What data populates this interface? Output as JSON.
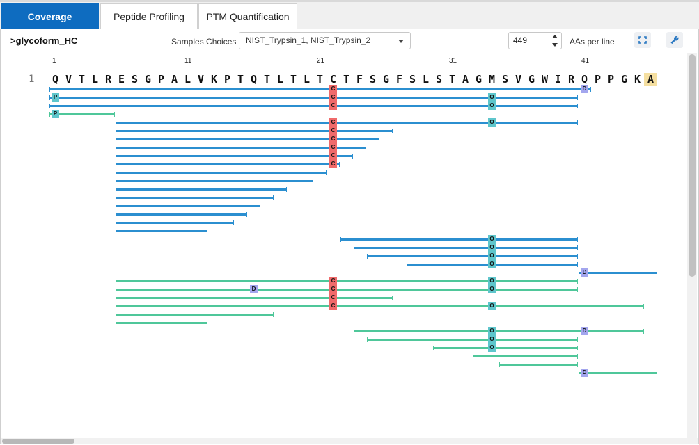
{
  "tabs": [
    {
      "label": "Coverage",
      "active": true
    },
    {
      "label": "Peptide Profiling",
      "active": false
    },
    {
      "label": "PTM Quantification",
      "active": false
    }
  ],
  "header": {
    "sequence_name": ">glycoform_HC",
    "samples_label": "Samples Choices",
    "samples_value": "NIST_Trypsin_1, NIST_Trypsin_2",
    "aa_per_line_value": "449",
    "aa_per_line_label": "AAs per line",
    "expand_icon": "expand-icon",
    "settings_icon": "wrench-icon"
  },
  "sequence": {
    "line_number": "1",
    "residues": [
      "Q",
      "V",
      "T",
      "L",
      "R",
      "E",
      "S",
      "G",
      "P",
      "A",
      "L",
      "V",
      "K",
      "P",
      "T",
      "Q",
      "T",
      "L",
      "T",
      "L",
      "T",
      "C",
      "T",
      "F",
      "S",
      "G",
      "F",
      "S",
      "L",
      "S",
      "T",
      "A",
      "G",
      "M",
      "S",
      "V",
      "G",
      "W",
      "I",
      "R",
      "Q",
      "P",
      "P",
      "G",
      "K",
      "A"
    ],
    "ruler": [
      {
        "position": 1,
        "label": "1"
      },
      {
        "position": 11,
        "label": "11"
      },
      {
        "position": 21,
        "label": "21"
      },
      {
        "position": 31,
        "label": "31"
      },
      {
        "position": 41,
        "label": "41"
      }
    ]
  },
  "colors": {
    "sample_1": "#2b8fd0",
    "sample_2": "#4fc79a",
    "mod_C": "#f06a6a",
    "mod_O": "#5ec6cc",
    "mod_D": "#a3a6ee",
    "mod_P": "#5ec6cc",
    "mod_E": "#f5dfa0"
  },
  "peptides": [
    {
      "sample": 1,
      "start": 1,
      "end": 41,
      "mods": [
        {
          "pos": 22,
          "code": "C"
        },
        {
          "pos": 41,
          "code": "D"
        }
      ]
    },
    {
      "sample": 1,
      "start": 1,
      "end": 40,
      "mods": [
        {
          "pos": 1,
          "code": "P"
        },
        {
          "pos": 22,
          "code": "C"
        },
        {
          "pos": 34,
          "code": "O"
        }
      ]
    },
    {
      "sample": 1,
      "start": 1,
      "end": 40,
      "mods": [
        {
          "pos": 22,
          "code": "C"
        },
        {
          "pos": 34,
          "code": "O"
        }
      ]
    },
    {
      "sample": 2,
      "start": 1,
      "end": 5,
      "mods": [
        {
          "pos": 1,
          "code": "P"
        }
      ]
    },
    {
      "sample": 1,
      "start": 6,
      "end": 40,
      "mods": [
        {
          "pos": 22,
          "code": "C"
        },
        {
          "pos": 34,
          "code": "O"
        }
      ]
    },
    {
      "sample": 1,
      "start": 6,
      "end": 26,
      "mods": [
        {
          "pos": 22,
          "code": "C"
        }
      ]
    },
    {
      "sample": 1,
      "start": 6,
      "end": 25,
      "mods": [
        {
          "pos": 22,
          "code": "C"
        }
      ]
    },
    {
      "sample": 1,
      "start": 6,
      "end": 24,
      "mods": [
        {
          "pos": 22,
          "code": "C"
        }
      ]
    },
    {
      "sample": 1,
      "start": 6,
      "end": 23,
      "mods": [
        {
          "pos": 22,
          "code": "C"
        }
      ]
    },
    {
      "sample": 1,
      "start": 6,
      "end": 22,
      "mods": [
        {
          "pos": 22,
          "code": "C"
        }
      ]
    },
    {
      "sample": 1,
      "start": 6,
      "end": 21,
      "mods": []
    },
    {
      "sample": 1,
      "start": 6,
      "end": 20,
      "mods": []
    },
    {
      "sample": 1,
      "start": 6,
      "end": 18,
      "mods": []
    },
    {
      "sample": 1,
      "start": 6,
      "end": 17,
      "mods": []
    },
    {
      "sample": 1,
      "start": 6,
      "end": 16,
      "mods": []
    },
    {
      "sample": 1,
      "start": 6,
      "end": 15,
      "mods": []
    },
    {
      "sample": 1,
      "start": 6,
      "end": 14,
      "mods": []
    },
    {
      "sample": 1,
      "start": 6,
      "end": 12,
      "mods": []
    },
    {
      "sample": 1,
      "start": 23,
      "end": 40,
      "mods": [
        {
          "pos": 34,
          "code": "O"
        }
      ]
    },
    {
      "sample": 1,
      "start": 24,
      "end": 40,
      "mods": [
        {
          "pos": 34,
          "code": "O"
        }
      ]
    },
    {
      "sample": 1,
      "start": 25,
      "end": 40,
      "mods": [
        {
          "pos": 34,
          "code": "O"
        }
      ]
    },
    {
      "sample": 1,
      "start": 28,
      "end": 40,
      "mods": [
        {
          "pos": 34,
          "code": "O"
        }
      ]
    },
    {
      "sample": 1,
      "start": 41,
      "end": 46,
      "mods": [
        {
          "pos": 41,
          "code": "D"
        }
      ]
    },
    {
      "sample": 2,
      "start": 6,
      "end": 40,
      "mods": [
        {
          "pos": 22,
          "code": "C"
        },
        {
          "pos": 34,
          "code": "O"
        }
      ]
    },
    {
      "sample": 2,
      "start": 6,
      "end": 40,
      "mods": [
        {
          "pos": 16,
          "code": "D"
        },
        {
          "pos": 22,
          "code": "C"
        },
        {
          "pos": 34,
          "code": "O"
        }
      ]
    },
    {
      "sample": 2,
      "start": 6,
      "end": 26,
      "mods": [
        {
          "pos": 22,
          "code": "C"
        }
      ]
    },
    {
      "sample": 2,
      "start": 6,
      "end": 45,
      "mods": [
        {
          "pos": 22,
          "code": "C"
        },
        {
          "pos": 34,
          "code": "O"
        }
      ]
    },
    {
      "sample": 2,
      "start": 6,
      "end": 17,
      "mods": []
    },
    {
      "sample": 2,
      "start": 6,
      "end": 12,
      "mods": []
    },
    {
      "sample": 2,
      "start": 24,
      "end": 45,
      "mods": [
        {
          "pos": 34,
          "code": "O"
        },
        {
          "pos": 41,
          "code": "D"
        }
      ]
    },
    {
      "sample": 2,
      "start": 25,
      "end": 40,
      "mods": [
        {
          "pos": 34,
          "code": "O"
        }
      ]
    },
    {
      "sample": 2,
      "start": 30,
      "end": 40,
      "mods": [
        {
          "pos": 34,
          "code": "O"
        }
      ]
    },
    {
      "sample": 2,
      "start": 33,
      "end": 40,
      "mods": []
    },
    {
      "sample": 2,
      "start": 35,
      "end": 40,
      "mods": []
    },
    {
      "sample": 2,
      "start": 41,
      "end": 46,
      "mods": [
        {
          "pos": 41,
          "code": "D"
        }
      ]
    }
  ]
}
